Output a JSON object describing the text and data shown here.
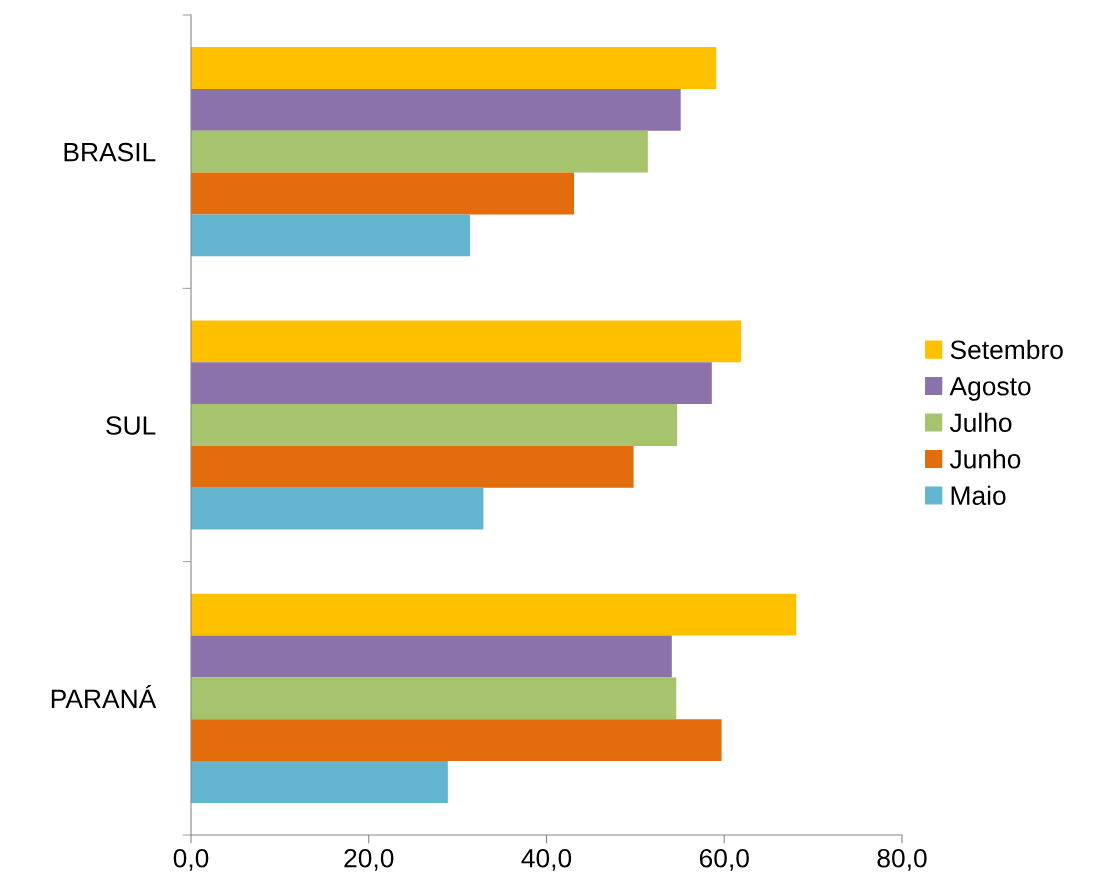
{
  "chart_data": {
    "type": "bar",
    "orientation": "horizontal",
    "categories": [
      "BRASIL",
      "SUL",
      "PARANÁ"
    ],
    "series": [
      {
        "name": "Setembro",
        "color": "#ffc000",
        "values": [
          59.1,
          61.9,
          68.1
        ]
      },
      {
        "name": "Agosto",
        "color": "#8c72ab",
        "values": [
          55.1,
          58.6,
          54.1
        ]
      },
      {
        "name": "Julho",
        "color": "#a6c46e",
        "values": [
          51.4,
          54.7,
          54.6
        ]
      },
      {
        "name": "Junho",
        "color": "#e36c0d",
        "values": [
          43.1,
          49.8,
          59.7
        ]
      },
      {
        "name": "Maio",
        "color": "#63b5cf",
        "values": [
          31.4,
          32.9,
          28.9
        ]
      }
    ],
    "xlim": [
      0,
      80
    ],
    "xticks": [
      {
        "value": 0,
        "label": "0,0"
      },
      {
        "value": 20,
        "label": "20,0"
      },
      {
        "value": 40,
        "label": "40,0"
      },
      {
        "value": 60,
        "label": "60,0"
      },
      {
        "value": 80,
        "label": "80,0"
      }
    ],
    "grid": false,
    "legend": "right"
  }
}
